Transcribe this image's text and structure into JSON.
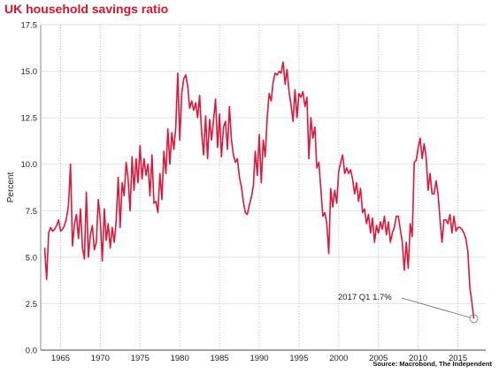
{
  "title": "UK household savings ratio",
  "source": "Source: Macrobond, The Independent",
  "colors": {
    "title": "#d7162e",
    "series": "#e0163a",
    "grid": "#bdbdbd"
  },
  "chart_data": {
    "type": "line",
    "title": "UK household savings ratio",
    "ylabel": "Percent",
    "xlabel": "",
    "ylim": [
      0,
      17.5
    ],
    "xlim": [
      1962.5,
      2018.5
    ],
    "yticks": [
      "0.0",
      "2.5",
      "5.0",
      "7.5",
      "10.0",
      "12.5",
      "15.0",
      "17.5"
    ],
    "xticks": [
      "1965",
      "1970",
      "1975",
      "1980",
      "1985",
      "1990",
      "1995",
      "2000",
      "2005",
      "2010",
      "2015"
    ],
    "grid": {
      "vertical": true,
      "horizontal": true
    },
    "annotation": {
      "text": "2017 Q1 1.7%",
      "x": 2017.0,
      "y": 1.7
    },
    "series": [
      {
        "values": [
          [
            1963.0,
            5.5
          ],
          [
            1963.25,
            3.8
          ],
          [
            1963.5,
            6.3
          ],
          [
            1963.75,
            6.6
          ],
          [
            1964.0,
            6.4
          ],
          [
            1964.25,
            6.5
          ],
          [
            1964.5,
            6.7
          ],
          [
            1964.75,
            7.0
          ],
          [
            1965.0,
            6.4
          ],
          [
            1965.25,
            6.5
          ],
          [
            1965.5,
            6.7
          ],
          [
            1965.75,
            7.1
          ],
          [
            1966.0,
            7.8
          ],
          [
            1966.25,
            10.0
          ],
          [
            1966.5,
            5.6
          ],
          [
            1966.75,
            6.8
          ],
          [
            1967.0,
            7.3
          ],
          [
            1967.25,
            6.0
          ],
          [
            1967.5,
            7.6
          ],
          [
            1967.75,
            5.5
          ],
          [
            1968.0,
            4.9
          ],
          [
            1968.25,
            8.5
          ],
          [
            1968.5,
            5.0
          ],
          [
            1968.75,
            6.2
          ],
          [
            1969.0,
            6.7
          ],
          [
            1969.25,
            5.4
          ],
          [
            1969.5,
            5.8
          ],
          [
            1969.75,
            8.1
          ],
          [
            1970.0,
            7.0
          ],
          [
            1970.25,
            4.8
          ],
          [
            1970.5,
            7.6
          ],
          [
            1970.75,
            5.9
          ],
          [
            1971.0,
            6.8
          ],
          [
            1971.25,
            5.5
          ],
          [
            1971.5,
            6.6
          ],
          [
            1971.75,
            5.8
          ],
          [
            1972.0,
            6.9
          ],
          [
            1972.25,
            9.3
          ],
          [
            1972.5,
            6.6
          ],
          [
            1972.75,
            9.0
          ],
          [
            1973.0,
            8.3
          ],
          [
            1973.25,
            10.1
          ],
          [
            1973.5,
            9.2
          ],
          [
            1973.75,
            7.5
          ],
          [
            1974.0,
            10.4
          ],
          [
            1974.25,
            8.6
          ],
          [
            1974.5,
            10.3
          ],
          [
            1974.75,
            9.0
          ],
          [
            1975.0,
            11.0
          ],
          [
            1975.25,
            9.2
          ],
          [
            1975.5,
            10.3
          ],
          [
            1975.75,
            9.4
          ],
          [
            1976.0,
            10.0
          ],
          [
            1976.25,
            8.3
          ],
          [
            1976.5,
            10.5
          ],
          [
            1976.75,
            7.9
          ],
          [
            1977.0,
            8.0
          ],
          [
            1977.25,
            7.4
          ],
          [
            1977.5,
            9.5
          ],
          [
            1977.75,
            8.1
          ],
          [
            1978.0,
            10.7
          ],
          [
            1978.25,
            9.5
          ],
          [
            1978.5,
            11.9
          ],
          [
            1978.75,
            10.0
          ],
          [
            1979.0,
            11.7
          ],
          [
            1979.25,
            10.8
          ],
          [
            1979.5,
            12.0
          ],
          [
            1979.75,
            14.9
          ],
          [
            1980.0,
            11.3
          ],
          [
            1980.25,
            13.8
          ],
          [
            1980.5,
            14.6
          ],
          [
            1980.75,
            14.8
          ],
          [
            1981.0,
            14.2
          ],
          [
            1981.25,
            13.0
          ],
          [
            1981.5,
            13.4
          ],
          [
            1981.75,
            12.9
          ],
          [
            1982.0,
            13.3
          ],
          [
            1982.25,
            12.5
          ],
          [
            1982.5,
            13.7
          ],
          [
            1982.75,
            11.7
          ],
          [
            1983.0,
            10.5
          ],
          [
            1983.25,
            12.6
          ],
          [
            1983.5,
            10.3
          ],
          [
            1983.75,
            12.4
          ],
          [
            1984.0,
            11.3
          ],
          [
            1984.25,
            12.4
          ],
          [
            1984.5,
            13.5
          ],
          [
            1984.75,
            10.9
          ],
          [
            1985.0,
            12.7
          ],
          [
            1985.25,
            10.4
          ],
          [
            1985.5,
            12.0
          ],
          [
            1985.75,
            12.3
          ],
          [
            1986.0,
            10.8
          ],
          [
            1986.25,
            13.1
          ],
          [
            1986.5,
            11.3
          ],
          [
            1986.75,
            10.5
          ],
          [
            1987.0,
            10.1
          ],
          [
            1987.25,
            10.3
          ],
          [
            1987.5,
            9.3
          ],
          [
            1987.75,
            8.8
          ],
          [
            1988.0,
            8.0
          ],
          [
            1988.25,
            7.4
          ],
          [
            1988.5,
            7.3
          ],
          [
            1988.75,
            7.8
          ],
          [
            1989.0,
            8.2
          ],
          [
            1989.25,
            8.8
          ],
          [
            1989.5,
            10.7
          ],
          [
            1989.75,
            9.4
          ],
          [
            1990.0,
            11.6
          ],
          [
            1990.25,
            9.0
          ],
          [
            1990.5,
            11.3
          ],
          [
            1990.75,
            10.4
          ],
          [
            1991.0,
            12.5
          ],
          [
            1991.25,
            13.8
          ],
          [
            1991.5,
            13.4
          ],
          [
            1991.75,
            14.4
          ],
          [
            1992.0,
            14.9
          ],
          [
            1992.25,
            14.8
          ],
          [
            1992.5,
            15.0
          ],
          [
            1992.75,
            14.9
          ],
          [
            1993.0,
            15.5
          ],
          [
            1993.25,
            14.3
          ],
          [
            1993.5,
            15.1
          ],
          [
            1993.75,
            13.9
          ],
          [
            1994.0,
            13.2
          ],
          [
            1994.25,
            12.3
          ],
          [
            1994.5,
            14.0
          ],
          [
            1994.75,
            12.5
          ],
          [
            1995.0,
            13.8
          ],
          [
            1995.25,
            13.6
          ],
          [
            1995.5,
            13.9
          ],
          [
            1995.75,
            13.1
          ],
          [
            1996.0,
            13.6
          ],
          [
            1996.25,
            10.3
          ],
          [
            1996.5,
            12.5
          ],
          [
            1996.75,
            11.4
          ],
          [
            1997.0,
            12.0
          ],
          [
            1997.25,
            9.8
          ],
          [
            1997.5,
            10.1
          ],
          [
            1997.75,
            8.7
          ],
          [
            1998.0,
            7.2
          ],
          [
            1998.25,
            7.4
          ],
          [
            1998.5,
            6.8
          ],
          [
            1998.75,
            5.2
          ],
          [
            1999.0,
            8.7
          ],
          [
            1999.25,
            7.7
          ],
          [
            1999.5,
            8.6
          ],
          [
            1999.75,
            7.9
          ],
          [
            2000.0,
            9.6
          ],
          [
            2000.25,
            10.1
          ],
          [
            2000.5,
            10.5
          ],
          [
            2000.75,
            9.5
          ],
          [
            2001.0,
            9.8
          ],
          [
            2001.25,
            9.5
          ],
          [
            2001.5,
            9.7
          ],
          [
            2001.75,
            9.2
          ],
          [
            2002.0,
            8.4
          ],
          [
            2002.25,
            9.0
          ],
          [
            2002.5,
            8.0
          ],
          [
            2002.75,
            8.7
          ],
          [
            2003.0,
            7.4
          ],
          [
            2003.25,
            7.6
          ],
          [
            2003.5,
            6.8
          ],
          [
            2003.75,
            7.3
          ],
          [
            2004.0,
            6.3
          ],
          [
            2004.25,
            7.1
          ],
          [
            2004.5,
            5.8
          ],
          [
            2004.75,
            6.7
          ],
          [
            2005.0,
            6.3
          ],
          [
            2005.25,
            6.9
          ],
          [
            2005.5,
            6.5
          ],
          [
            2005.75,
            7.2
          ],
          [
            2006.0,
            6.2
          ],
          [
            2006.25,
            6.9
          ],
          [
            2006.5,
            5.8
          ],
          [
            2006.75,
            6.3
          ],
          [
            2007.0,
            6.6
          ],
          [
            2007.25,
            7.2
          ],
          [
            2007.5,
            7.2
          ],
          [
            2007.75,
            6.5
          ],
          [
            2008.0,
            5.8
          ],
          [
            2008.25,
            4.3
          ],
          [
            2008.5,
            5.8
          ],
          [
            2008.75,
            4.4
          ],
          [
            2009.0,
            6.8
          ],
          [
            2009.25,
            6.1
          ],
          [
            2009.5,
            10.1
          ],
          [
            2009.75,
            10.2
          ],
          [
            2010.0,
            10.9
          ],
          [
            2010.25,
            11.4
          ],
          [
            2010.5,
            10.3
          ],
          [
            2010.75,
            11.1
          ],
          [
            2011.0,
            10.4
          ],
          [
            2011.25,
            8.6
          ],
          [
            2011.5,
            9.5
          ],
          [
            2011.75,
            8.4
          ],
          [
            2012.0,
            8.4
          ],
          [
            2012.25,
            9.1
          ],
          [
            2012.5,
            8.4
          ],
          [
            2012.75,
            7.0
          ],
          [
            2013.0,
            5.8
          ],
          [
            2013.25,
            7.0
          ],
          [
            2013.5,
            7.0
          ],
          [
            2013.75,
            6.8
          ],
          [
            2014.0,
            7.3
          ],
          [
            2014.25,
            6.3
          ],
          [
            2014.5,
            7.2
          ],
          [
            2014.75,
            6.4
          ],
          [
            2015.0,
            6.6
          ],
          [
            2015.25,
            6.6
          ],
          [
            2015.5,
            6.5
          ],
          [
            2015.75,
            6.3
          ],
          [
            2016.0,
            6.0
          ],
          [
            2016.25,
            5.3
          ],
          [
            2016.5,
            3.4
          ],
          [
            2016.75,
            2.6
          ],
          [
            2017.0,
            1.7
          ]
        ]
      }
    ]
  }
}
